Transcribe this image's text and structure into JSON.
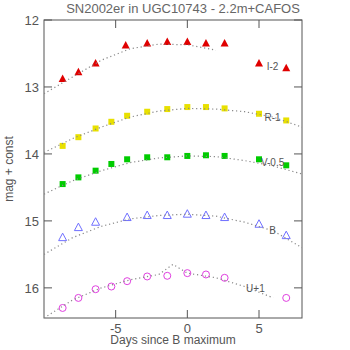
{
  "chart_data": {
    "type": "scatter",
    "title": "SN2002er in UGC10743 - 2.2m+CAFOS",
    "x_label": "Days since B maximum",
    "y_label": "mag + const",
    "xlim": [
      -10,
      8
    ],
    "ylim": [
      16.45,
      12
    ],
    "xticks": [
      -5,
      0,
      5
    ],
    "yticks": [
      12,
      13,
      14,
      15,
      16
    ],
    "series": [
      {
        "name": "I-2",
        "color": "#e00000",
        "marker": "triangle",
        "x": [
          -8.7,
          -7.6,
          -6.4,
          -4.3,
          -2.8,
          -1.4,
          0.0,
          1.3,
          2.6,
          5.0,
          6.9
        ],
        "values": [
          12.88,
          12.78,
          12.65,
          12.38,
          12.35,
          12.33,
          12.33,
          12.35,
          12.35,
          12.65,
          12.72
        ]
      },
      {
        "name": "R-1",
        "color": "#e8e000",
        "marker": "square",
        "x": [
          -8.7,
          -7.6,
          -6.4,
          -5.3,
          -4.2,
          -2.8,
          -1.4,
          0.0,
          1.3,
          2.6,
          5.0,
          6.9
        ],
        "values": [
          13.88,
          13.75,
          13.62,
          13.52,
          13.43,
          13.37,
          13.33,
          13.3,
          13.3,
          13.32,
          13.4,
          13.5
        ]
      },
      {
        "name": "V-0.5",
        "color": "#00cc00",
        "marker": "square",
        "x": [
          -8.7,
          -7.6,
          -6.4,
          -5.3,
          -4.2,
          -2.8,
          -1.4,
          0.0,
          1.3,
          2.6,
          5.0,
          6.9
        ],
        "values": [
          14.45,
          14.35,
          14.25,
          14.15,
          14.08,
          14.05,
          14.05,
          14.03,
          14.02,
          14.03,
          14.08,
          14.17
        ]
      },
      {
        "name": "B",
        "color": "#7070ff",
        "marker": "open-triangle",
        "x": [
          -8.7,
          -7.6,
          -6.4,
          -4.2,
          -2.8,
          -1.4,
          0.0,
          1.3,
          2.6,
          5.0,
          6.9
        ],
        "values": [
          15.25,
          15.1,
          15.02,
          14.95,
          14.92,
          14.92,
          14.9,
          14.92,
          14.95,
          15.05,
          15.22
        ]
      },
      {
        "name": "U+1",
        "color": "#e040e0",
        "marker": "open-circle",
        "x": [
          -8.7,
          -7.6,
          -6.4,
          -5.3,
          -4.2,
          -2.8,
          -1.4,
          0.0,
          1.3,
          2.6,
          6.9
        ],
        "values": [
          16.3,
          16.15,
          16.02,
          15.98,
          15.9,
          15.83,
          15.82,
          15.78,
          15.8,
          15.85,
          16.15
        ]
      },
      {
        "type": "line",
        "line_style": "dotted",
        "color": "#888888",
        "x": [
          -10,
          -8,
          -6,
          -4,
          -2,
          0,
          2,
          4,
          6,
          8
        ],
        "values": [
          13.1,
          12.85,
          12.6,
          12.43,
          12.36,
          12.37,
          12.45,
          null,
          null,
          null
        ]
      },
      {
        "type": "line",
        "line_style": "dotted",
        "color": "#888888",
        "x": [
          -10,
          -8,
          -6,
          -4,
          -2,
          0,
          2,
          4,
          6,
          8
        ],
        "values": [
          13.98,
          13.77,
          13.6,
          13.45,
          13.36,
          13.32,
          13.33,
          13.37,
          13.45,
          13.6
        ]
      },
      {
        "type": "line",
        "line_style": "dotted",
        "color": "#888888",
        "x": [
          -10,
          -8,
          -6,
          -4,
          -2,
          0,
          2,
          4,
          6,
          8
        ],
        "values": [
          14.6,
          14.4,
          14.25,
          14.13,
          14.06,
          14.03,
          14.04,
          14.1,
          14.18,
          14.3
        ]
      },
      {
        "type": "line",
        "line_style": "dotted",
        "color": "#888888",
        "x": [
          -10,
          -8,
          -6,
          -4,
          -2,
          0,
          2,
          4,
          6,
          8
        ],
        "values": [
          15.5,
          15.25,
          15.08,
          14.97,
          14.92,
          14.9,
          14.93,
          15.02,
          15.15,
          15.4
        ]
      },
      {
        "type": "line",
        "line_style": "dotted",
        "color": "#888888",
        "x": [
          -10,
          -8,
          -6,
          -4,
          -2,
          -1,
          0,
          2,
          4,
          6,
          8
        ],
        "values": [
          16.45,
          16.18,
          16.0,
          15.88,
          15.8,
          15.65,
          15.78,
          15.85,
          15.98,
          16.15,
          null
        ]
      }
    ]
  }
}
